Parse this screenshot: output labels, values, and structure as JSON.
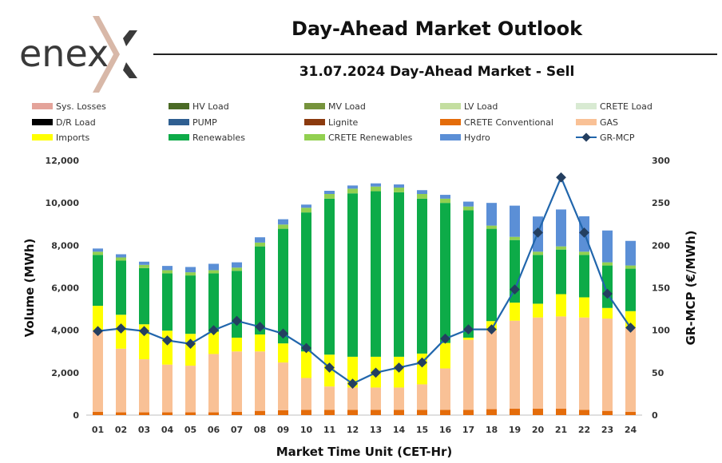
{
  "logo": {
    "text": "enex"
  },
  "header": {
    "title": "Day-Ahead Market Outlook",
    "subtitle": "31.07.2024  Day-Ahead Market - Sell"
  },
  "colors": {
    "Sys. Losses": "#e4a39a",
    "HV Load": "#4a6a25",
    "MV Load": "#76933c",
    "LV Load": "#c4dea0",
    "CRETE Load": "#d8ead2",
    "D/R Load": "#000000",
    "PUMP": "#2f5f91",
    "Lignite": "#8b3a0e",
    "CRETE Conventional": "#e46c0a",
    "GAS": "#f9c196",
    "Imports": "#ffff00",
    "Renewables": "#0dab48",
    "CRETE Renewables": "#92d050",
    "Hydro": "#5b8fd6",
    "GR-MCP": "#2166ac"
  },
  "chart_data": {
    "type": "bar",
    "stacked": true,
    "categories": [
      "01",
      "02",
      "03",
      "04",
      "05",
      "06",
      "07",
      "08",
      "09",
      "10",
      "11",
      "12",
      "13",
      "14",
      "15",
      "16",
      "17",
      "18",
      "19",
      "20",
      "21",
      "22",
      "23",
      "24"
    ],
    "legend": [
      "Sys. Losses",
      "HV Load",
      "MV Load",
      "LV Load",
      "CRETE Load",
      "D/R Load",
      "PUMP",
      "Lignite",
      "CRETE Conventional",
      "GAS",
      "Imports",
      "Renewables",
      "CRETE Renewables",
      "Hydro",
      "GR-MCP"
    ],
    "series": [
      {
        "name": "Lignite",
        "values": [
          0,
          0,
          0,
          0,
          0,
          0,
          0,
          0,
          0,
          0,
          0,
          0,
          0,
          0,
          0,
          0,
          0,
          0,
          0,
          0,
          0,
          0,
          0,
          0
        ]
      },
      {
        "name": "CRETE Conventional",
        "values": [
          150,
          130,
          130,
          130,
          130,
          130,
          150,
          200,
          230,
          250,
          250,
          250,
          250,
          250,
          250,
          250,
          250,
          280,
          300,
          300,
          300,
          250,
          200,
          150
        ]
      },
      {
        "name": "GAS",
        "values": [
          3850,
          3000,
          2500,
          2250,
          2200,
          2750,
          2850,
          2800,
          2250,
          1500,
          1100,
          1050,
          1050,
          1050,
          1200,
          1950,
          3300,
          3700,
          4150,
          4300,
          4350,
          4350,
          4350,
          3950
        ]
      },
      {
        "name": "Imports",
        "values": [
          1150,
          1600,
          1650,
          1600,
          1500,
          1050,
          650,
          800,
          900,
          1250,
          1500,
          1450,
          1450,
          1450,
          1450,
          1200,
          100,
          450,
          850,
          650,
          1050,
          950,
          500,
          800
        ]
      },
      {
        "name": "Renewables",
        "values": [
          2400,
          2550,
          2650,
          2700,
          2750,
          2750,
          3150,
          4150,
          5400,
          6550,
          7350,
          7700,
          7800,
          7750,
          7300,
          6600,
          6000,
          4350,
          2950,
          2300,
          2100,
          2000,
          2000,
          2000
        ]
      },
      {
        "name": "CRETE Renewables",
        "values": [
          150,
          150,
          150,
          150,
          150,
          150,
          150,
          180,
          200,
          220,
          220,
          220,
          220,
          220,
          220,
          200,
          180,
          150,
          150,
          150,
          150,
          150,
          150,
          150
        ]
      },
      {
        "name": "Hydro",
        "values": [
          150,
          150,
          150,
          200,
          250,
          300,
          250,
          250,
          250,
          150,
          150,
          150,
          150,
          150,
          180,
          180,
          230,
          1070,
          1470,
          1660,
          1740,
          1670,
          1500,
          1160
        ]
      }
    ],
    "line": {
      "name": "GR-MCP",
      "axis": "right",
      "values": [
        99,
        102,
        99,
        88,
        84,
        100,
        111,
        104,
        96,
        79,
        56,
        37,
        50,
        56,
        62,
        90,
        101,
        101,
        148,
        215,
        280,
        215,
        143,
        103
      ]
    },
    "xlabel": "Market Time Unit (CET-Hr)",
    "ylabel": "Volume (MWh)",
    "y2label": "GR-MCP (€/MWh)",
    "ylim": [
      0,
      12000
    ],
    "y2lim": [
      0,
      300
    ],
    "yticks": [
      0,
      2000,
      4000,
      6000,
      8000,
      10000,
      12000
    ],
    "yticklabels": [
      "0",
      "2,000",
      "4,000",
      "6,000",
      "8,000",
      "10,000",
      "12,000"
    ],
    "y2ticks": [
      0,
      50,
      100,
      150,
      200,
      250,
      300
    ],
    "y2ticklabels": [
      "0",
      "50",
      "100",
      "150",
      "200",
      "250",
      "300"
    ]
  }
}
